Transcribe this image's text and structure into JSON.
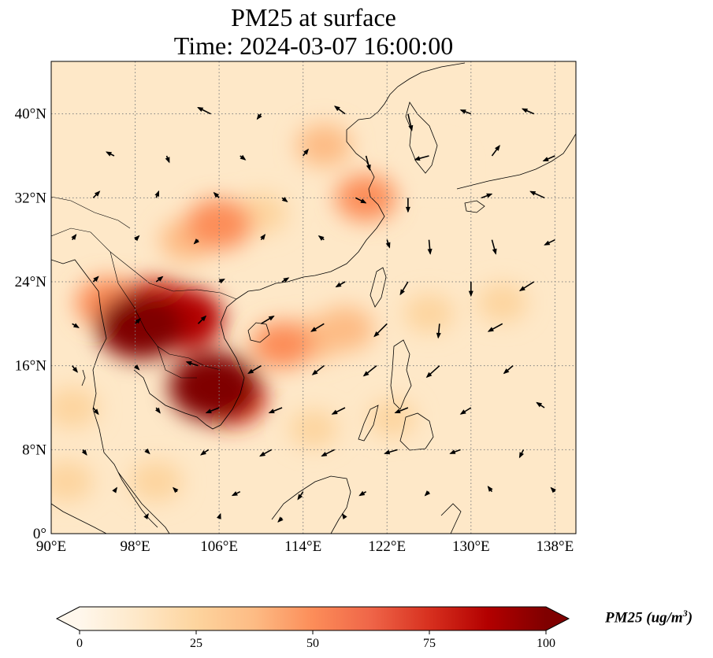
{
  "chart_data": {
    "type": "heatmap",
    "title": "PM25 at surface",
    "subtitle": "Time: 2024-03-07 16:00:00",
    "variable": "PM25",
    "units": "ug/m^3",
    "colorbar_label": "PM25 (ug/m",
    "colorbar_label_sup": "3",
    "colorbar_label_end": ")",
    "colorbar_ticks": [
      "0",
      "25",
      "50",
      "75",
      "100"
    ],
    "colorbar_range": [
      0,
      100
    ],
    "colormap": "OrRd",
    "colorbar_extend": "both",
    "xlim": [
      90,
      140
    ],
    "ylim": [
      0,
      45
    ],
    "x_ticks": [
      "90°E",
      "98°E",
      "106°E",
      "114°E",
      "122°E",
      "130°E",
      "138°E"
    ],
    "x_tick_values": [
      90,
      98,
      106,
      114,
      122,
      130,
      138
    ],
    "y_ticks": [
      "0°",
      "8°N",
      "16°N",
      "24°N",
      "32°N",
      "40°N"
    ],
    "y_tick_values": [
      0,
      8,
      16,
      24,
      32,
      40
    ],
    "grid": true,
    "hotspots": [
      {
        "lon": 105.5,
        "lat": 14.0,
        "value": 100
      },
      {
        "lon": 98.5,
        "lat": 19.8,
        "value": 95
      },
      {
        "lon": 102.5,
        "lat": 20.5,
        "value": 85
      },
      {
        "lon": 100.0,
        "lat": 21.5,
        "value": 75
      },
      {
        "lon": 95.5,
        "lat": 22.0,
        "value": 55
      },
      {
        "lon": 107.0,
        "lat": 13.0,
        "value": 70
      },
      {
        "lon": 106.0,
        "lat": 29.5,
        "value": 55
      },
      {
        "lon": 103.0,
        "lat": 28.0,
        "value": 35
      },
      {
        "lon": 110.0,
        "lat": 30.5,
        "value": 30
      },
      {
        "lon": 118.0,
        "lat": 19.5,
        "value": 40
      },
      {
        "lon": 115.0,
        "lat": 18.5,
        "value": 35
      },
      {
        "lon": 120.0,
        "lat": 32.0,
        "value": 45
      },
      {
        "lon": 116.0,
        "lat": 37.0,
        "value": 35
      },
      {
        "lon": 112.0,
        "lat": 18.0,
        "value": 45
      },
      {
        "lon": 92.0,
        "lat": 12.0,
        "value": 30
      },
      {
        "lon": 91.5,
        "lat": 5.0,
        "value": 30
      },
      {
        "lon": 126.0,
        "lat": 21.0,
        "value": 25
      },
      {
        "lon": 133.0,
        "lat": 22.0,
        "value": 25
      },
      {
        "lon": 100.0,
        "lat": 5.0,
        "value": 30
      },
      {
        "lon": 122.5,
        "lat": 11.0,
        "value": 20
      },
      {
        "lon": 127.0,
        "lat": 35.0,
        "value": 15
      },
      {
        "lon": 115.0,
        "lat": 10.0,
        "value": 22
      }
    ],
    "wind_field": [
      [
        105.2,
        40,
        -1,
        0.5
      ],
      [
        110,
        40,
        -0.3,
        -0.4
      ],
      [
        118,
        40,
        -0.8,
        0.6
      ],
      [
        124,
        40,
        0.3,
        -1.3
      ],
      [
        130,
        40,
        -0.8,
        0.3
      ],
      [
        136,
        40,
        -0.9,
        0.4
      ],
      [
        96,
        36,
        -0.6,
        0.3
      ],
      [
        101,
        36,
        0.2,
        -0.5
      ],
      [
        108,
        36,
        0.4,
        -0.3
      ],
      [
        114,
        36,
        0.4,
        0.5
      ],
      [
        120,
        36,
        0.3,
        -1.1
      ],
      [
        126,
        36,
        -1.1,
        -0.3
      ],
      [
        132,
        36,
        0.6,
        0.8
      ],
      [
        138,
        36,
        -0.9,
        -0.4
      ],
      [
        94,
        32,
        0.5,
        0.5
      ],
      [
        100,
        32,
        0.2,
        0.5
      ],
      [
        106,
        32,
        -0.4,
        0.4
      ],
      [
        112,
        32,
        0.4,
        -0.3
      ],
      [
        119,
        32,
        0.8,
        -0.4
      ],
      [
        124,
        32,
        0,
        -1.1
      ],
      [
        131,
        32,
        0.8,
        0.3
      ],
      [
        137,
        32,
        -1.1,
        0.5
      ],
      [
        92,
        28,
        0.3,
        0.4
      ],
      [
        98,
        28,
        0.3,
        0.3
      ],
      [
        104,
        28,
        -0.3,
        -0.3
      ],
      [
        110,
        28,
        0.3,
        0.4
      ],
      [
        116,
        28,
        -0.4,
        0.3
      ],
      [
        122,
        28,
        0.2,
        -0.6
      ],
      [
        126,
        28,
        0.1,
        -1.1
      ],
      [
        132,
        28,
        0.3,
        -1.1
      ],
      [
        138,
        28,
        -0.8,
        -0.4
      ],
      [
        94,
        24,
        0.4,
        0.4
      ],
      [
        100,
        24,
        0.5,
        0.4
      ],
      [
        106,
        24,
        0.4,
        0.2
      ],
      [
        112,
        24,
        0.5,
        0.3
      ],
      [
        118,
        24,
        -0.7,
        -0.4
      ],
      [
        124,
        24,
        -0.6,
        -1
      ],
      [
        130,
        24,
        0,
        -1.1
      ],
      [
        136,
        24,
        -1.1,
        -0.7
      ],
      [
        92,
        20,
        0.5,
        -0.3
      ],
      [
        98,
        20,
        0.4,
        0.4
      ],
      [
        104,
        20,
        0.6,
        0.6
      ],
      [
        110,
        20,
        1,
        0.6
      ],
      [
        116,
        20,
        -1,
        -0.6
      ],
      [
        122,
        20,
        -1,
        -1
      ],
      [
        127,
        20,
        -0.1,
        -1.1
      ],
      [
        133,
        20,
        -1.1,
        -0.6
      ],
      [
        92,
        16,
        0.4,
        -0.5
      ],
      [
        98,
        16,
        0.3,
        -0.3
      ],
      [
        104,
        16,
        -0.9,
        0.3
      ],
      [
        110,
        16,
        -1,
        -0.6
      ],
      [
        116,
        16,
        -0.9,
        -0.7
      ],
      [
        121,
        16,
        -1,
        -0.8
      ],
      [
        127,
        16,
        -1,
        -0.9
      ],
      [
        134,
        16,
        -0.7,
        -0.6
      ],
      [
        94,
        12,
        0.4,
        -0.5
      ],
      [
        100,
        12,
        0.3,
        -0.4
      ],
      [
        106,
        12,
        -1,
        -0.4
      ],
      [
        112,
        12,
        -1,
        -0.4
      ],
      [
        118,
        12,
        -1,
        -0.5
      ],
      [
        124,
        12,
        -1,
        -0.4
      ],
      [
        130,
        12,
        -0.8,
        -0.5
      ],
      [
        137,
        12,
        -0.6,
        0.4
      ],
      [
        93,
        8,
        0.3,
        -0.4
      ],
      [
        99,
        8,
        0.3,
        -0.3
      ],
      [
        105,
        8,
        -0.6,
        -0.4
      ],
      [
        111,
        8,
        -0.9,
        -0.5
      ],
      [
        117,
        8,
        -1,
        -0.5
      ],
      [
        123,
        8,
        -1,
        -0.3
      ],
      [
        129,
        8,
        -0.8,
        -0.3
      ],
      [
        135,
        8,
        -0.3,
        -0.6
      ],
      [
        96,
        4,
        0.2,
        0.3
      ],
      [
        102,
        4,
        -0.3,
        0.3
      ],
      [
        108,
        4,
        -0.6,
        -0.3
      ],
      [
        114,
        4,
        -0.4,
        -0.6
      ],
      [
        120,
        4,
        -0.5,
        -0.3
      ],
      [
        126,
        4,
        -0.3,
        -0.3
      ],
      [
        132,
        4,
        -0.3,
        0.4
      ],
      [
        138,
        4,
        -0.3,
        0.3
      ],
      [
        99,
        1.5,
        0.2,
        0.3
      ],
      [
        106,
        1.5,
        0.1,
        0.3
      ],
      [
        112,
        1.5,
        -0.3,
        -0.3
      ],
      [
        118,
        1.5,
        -0.2,
        0.3
      ]
    ]
  },
  "colors": {
    "ramp": [
      "#fff7ec",
      "#fee8c8",
      "#fdd49e",
      "#fdbb84",
      "#fc8d59",
      "#ef6548",
      "#d7301f",
      "#b30000",
      "#7f0000"
    ],
    "coast": "#000000",
    "grid": "#808080",
    "arrow": "#000000"
  }
}
